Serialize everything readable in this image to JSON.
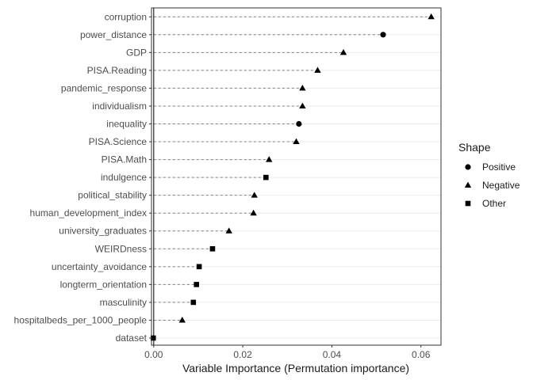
{
  "chart_data": {
    "type": "dot",
    "xlabel": "Variable Importance (Permutation importance)",
    "ylabel": "",
    "xlim": [
      -0.0005,
      0.0645
    ],
    "xticks": [
      0.0,
      0.02,
      0.04,
      0.06
    ],
    "xtick_labels": [
      "0.00",
      "0.02",
      "0.04",
      "0.06"
    ],
    "reference_line_x": 0,
    "grid": "horizontal major lines, light gray",
    "points": [
      {
        "variable": "corruption",
        "importance": 0.0623,
        "shape": "Negative"
      },
      {
        "variable": "power_distance",
        "importance": 0.0515,
        "shape": "Positive"
      },
      {
        "variable": "GDP",
        "importance": 0.0426,
        "shape": "Negative"
      },
      {
        "variable": "PISA.Reading",
        "importance": 0.0368,
        "shape": "Negative"
      },
      {
        "variable": "pandemic_response",
        "importance": 0.0334,
        "shape": "Negative"
      },
      {
        "variable": "individualism",
        "importance": 0.0334,
        "shape": "Negative"
      },
      {
        "variable": "inequality",
        "importance": 0.0326,
        "shape": "Positive"
      },
      {
        "variable": "PISA.Science",
        "importance": 0.032,
        "shape": "Negative"
      },
      {
        "variable": "PISA.Math",
        "importance": 0.0259,
        "shape": "Negative"
      },
      {
        "variable": "indulgence",
        "importance": 0.0252,
        "shape": "Other"
      },
      {
        "variable": "political_stability",
        "importance": 0.0226,
        "shape": "Negative"
      },
      {
        "variable": "human_development_index",
        "importance": 0.0224,
        "shape": "Negative"
      },
      {
        "variable": "university_graduates",
        "importance": 0.0169,
        "shape": "Negative"
      },
      {
        "variable": "WEIRDness",
        "importance": 0.0132,
        "shape": "Other"
      },
      {
        "variable": "uncertainty_avoidance",
        "importance": 0.0102,
        "shape": "Other"
      },
      {
        "variable": "longterm_orientation",
        "importance": 0.0096,
        "shape": "Other"
      },
      {
        "variable": "masculinity",
        "importance": 0.0089,
        "shape": "Other"
      },
      {
        "variable": "hospitalbeds_per_1000_people",
        "importance": 0.0064,
        "shape": "Negative"
      },
      {
        "variable": "dataset",
        "importance": -0.0001,
        "shape": "Other"
      }
    ],
    "legend": {
      "title": "Shape",
      "position": "right",
      "items": [
        {
          "label": "Positive",
          "marker": "circle"
        },
        {
          "label": "Negative",
          "marker": "triangle"
        },
        {
          "label": "Other",
          "marker": "square"
        }
      ]
    },
    "colors": {
      "points": "#000000",
      "segments": "#808080",
      "grid": "#ebebeb",
      "panel_border": "#333333",
      "zero_line": "#000000"
    }
  }
}
